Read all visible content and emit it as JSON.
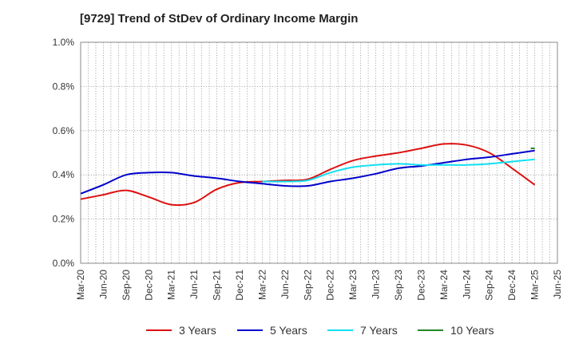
{
  "chart_data": {
    "type": "line",
    "title": "[9729]  Trend of StDev of Ordinary Income Margin",
    "xlabel": "",
    "ylabel": "",
    "x": [
      "Mar-20",
      "Jun-20",
      "Sep-20",
      "Dec-20",
      "Mar-21",
      "Jun-21",
      "Sep-21",
      "Dec-21",
      "Mar-22",
      "Jun-22",
      "Sep-22",
      "Dec-22",
      "Mar-23",
      "Jun-23",
      "Sep-23",
      "Dec-23",
      "Mar-24",
      "Jun-24",
      "Sep-24",
      "Dec-24",
      "Mar-25",
      "Jun-25"
    ],
    "ylim": [
      0,
      1.0
    ],
    "yticks": [
      "0.0%",
      "0.2%",
      "0.4%",
      "0.6%",
      "0.8%",
      "1.0%"
    ],
    "grid": true,
    "legend_position": "bottom",
    "series": [
      {
        "name": "3 Years",
        "color": "#dd1111",
        "values": [
          0.29,
          0.31,
          0.33,
          0.3,
          0.265,
          0.275,
          0.335,
          0.365,
          0.37,
          0.375,
          0.38,
          0.425,
          0.465,
          0.485,
          0.5,
          0.52,
          0.54,
          0.535,
          0.5,
          0.43,
          0.355,
          null
        ]
      },
      {
        "name": "5 Years",
        "color": "#0000cc",
        "values": [
          0.315,
          0.355,
          0.4,
          0.41,
          0.41,
          0.395,
          0.385,
          0.37,
          0.36,
          0.35,
          0.35,
          0.37,
          0.385,
          0.405,
          0.43,
          0.44,
          0.455,
          0.47,
          0.48,
          0.495,
          0.51,
          null
        ]
      },
      {
        "name": "7 Years",
        "color": "#11e0f0",
        "values": [
          null,
          null,
          null,
          null,
          null,
          null,
          null,
          null,
          0.37,
          0.37,
          0.375,
          0.41,
          0.435,
          0.445,
          0.45,
          0.445,
          0.445,
          0.445,
          0.45,
          0.46,
          0.47,
          null
        ]
      },
      {
        "name": "10 Years",
        "color": "#228822",
        "values": [
          null,
          null,
          null,
          null,
          null,
          null,
          null,
          null,
          null,
          null,
          null,
          null,
          null,
          null,
          null,
          null,
          null,
          null,
          null,
          null,
          0.52,
          null
        ]
      }
    ]
  }
}
